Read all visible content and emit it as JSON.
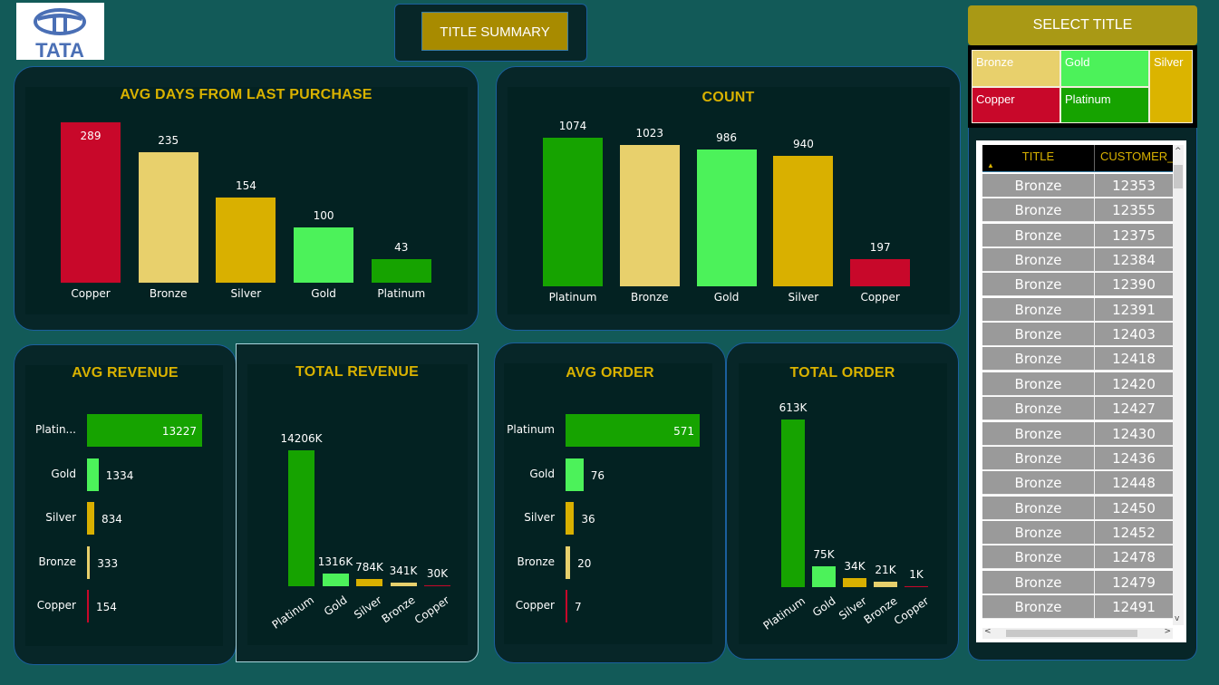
{
  "logo": {
    "text": "TATA"
  },
  "header": {
    "summary_button": "TITLE SUMMARY",
    "select_title_button": "SELECT TITLE"
  },
  "colors": {
    "Copper": "#c8082a",
    "Bronze": "#e8d06c",
    "Silver": "#d9b000",
    "Gold": "#4cf25a",
    "Platinum": "#16a300",
    "title": "#d9b200"
  },
  "slicer": {
    "tiles": [
      "Bronze",
      "Gold",
      "Silver",
      "Copper",
      "Platinum"
    ]
  },
  "table": {
    "columns": [
      "TITLE",
      "CUSTOMER_ID"
    ],
    "rows": [
      [
        "Bronze",
        "12353"
      ],
      [
        "Bronze",
        "12355"
      ],
      [
        "Bronze",
        "12375"
      ],
      [
        "Bronze",
        "12384"
      ],
      [
        "Bronze",
        "12390"
      ],
      [
        "Bronze",
        "12391"
      ],
      [
        "Bronze",
        "12403"
      ],
      [
        "Bronze",
        "12418"
      ],
      [
        "Bronze",
        "12420"
      ],
      [
        "Bronze",
        "12427"
      ],
      [
        "Bronze",
        "12430"
      ],
      [
        "Bronze",
        "12436"
      ],
      [
        "Bronze",
        "12448"
      ],
      [
        "Bronze",
        "12450"
      ],
      [
        "Bronze",
        "12452"
      ],
      [
        "Bronze",
        "12478"
      ],
      [
        "Bronze",
        "12479"
      ],
      [
        "Bronze",
        "12491"
      ]
    ]
  },
  "chart_data": [
    {
      "id": "avgdays",
      "type": "bar",
      "title": "AVG DAYS FROM LAST PURCHASE",
      "categories": [
        "Copper",
        "Bronze",
        "Silver",
        "Gold",
        "Platinum"
      ],
      "values": [
        289,
        235,
        154,
        100,
        43
      ],
      "labels": [
        "289",
        "235",
        "154",
        "100",
        "43"
      ]
    },
    {
      "id": "count",
      "type": "bar",
      "title": "COUNT",
      "categories": [
        "Platinum",
        "Bronze",
        "Gold",
        "Silver",
        "Copper"
      ],
      "values": [
        1074,
        1023,
        986,
        940,
        197
      ],
      "labels": [
        "1074",
        "1023",
        "986",
        "940",
        "197"
      ]
    },
    {
      "id": "avgrev",
      "type": "bar",
      "orientation": "horizontal",
      "title": "AVG REVENUE",
      "categories": [
        "Platinum",
        "Gold",
        "Silver",
        "Bronze",
        "Copper"
      ],
      "category_labels": [
        "Platin...",
        "Gold",
        "Silver",
        "Bronze",
        "Copper"
      ],
      "values": [
        13227,
        1334,
        834,
        333,
        154
      ],
      "labels": [
        "13227",
        "1334",
        "834",
        "333",
        "154"
      ]
    },
    {
      "id": "totrev",
      "type": "bar",
      "title": "TOTAL REVENUE",
      "categories": [
        "Platinum",
        "Gold",
        "Silver",
        "Bronze",
        "Copper"
      ],
      "values": [
        14206,
        1316,
        784,
        341,
        30
      ],
      "labels": [
        "14206K",
        "1316K",
        "784K",
        "341K",
        "30K"
      ],
      "unit": "K"
    },
    {
      "id": "avgord",
      "type": "bar",
      "orientation": "horizontal",
      "title": "AVG ORDER",
      "categories": [
        "Platinum",
        "Gold",
        "Silver",
        "Bronze",
        "Copper"
      ],
      "category_labels": [
        "Platinum",
        "Gold",
        "Silver",
        "Bronze",
        "Copper"
      ],
      "values": [
        571,
        76,
        36,
        20,
        7
      ],
      "labels": [
        "571",
        "76",
        "36",
        "20",
        "7"
      ]
    },
    {
      "id": "totord",
      "type": "bar",
      "title": "TOTAL ORDER",
      "categories": [
        "Platinum",
        "Gold",
        "Silver",
        "Bronze",
        "Copper"
      ],
      "values": [
        613,
        75,
        34,
        21,
        1
      ],
      "labels": [
        "613K",
        "75K",
        "34K",
        "21K",
        "1K"
      ],
      "unit": "K"
    }
  ]
}
